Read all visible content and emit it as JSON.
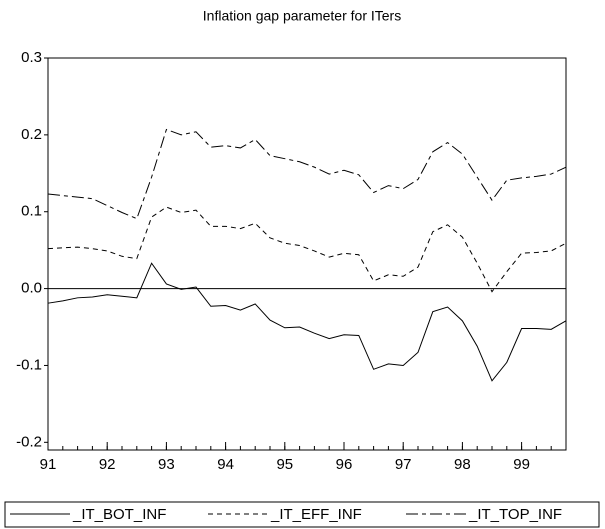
{
  "chart_data": {
    "type": "line",
    "title": "Inflation gap parameter for ITers",
    "x": [
      91,
      91.25,
      91.5,
      91.75,
      92,
      92.25,
      92.5,
      92.75,
      93,
      93.25,
      93.5,
      93.75,
      94,
      94.25,
      94.5,
      94.75,
      95,
      95.25,
      95.5,
      95.75,
      96,
      96.25,
      96.5,
      96.75,
      97,
      97.25,
      97.5,
      97.75,
      98,
      98.25,
      98.5,
      98.75,
      99,
      99.25,
      99.5,
      99.75
    ],
    "series": [
      {
        "name": "_IT_BOT_INF",
        "color": "#000000",
        "dash": "none",
        "values": [
          -0.019,
          -0.016,
          -0.012,
          -0.011,
          -0.008,
          -0.01,
          -0.012,
          0.033,
          0.006,
          -0.001,
          0.002,
          -0.023,
          -0.022,
          -0.028,
          -0.02,
          -0.041,
          -0.051,
          -0.05,
          -0.058,
          -0.065,
          -0.06,
          -0.061,
          -0.105,
          -0.098,
          -0.1,
          -0.083,
          -0.03,
          -0.024,
          -0.042,
          -0.075,
          -0.12,
          -0.096,
          -0.052,
          -0.052,
          -0.053,
          -0.042
        ]
      },
      {
        "name": "_IT_EFF_INF",
        "color": "#000000",
        "dash": "5,4",
        "values": [
          0.052,
          0.053,
          0.054,
          0.052,
          0.049,
          0.042,
          0.039,
          0.093,
          0.106,
          0.099,
          0.102,
          0.081,
          0.081,
          0.078,
          0.085,
          0.066,
          0.059,
          0.056,
          0.049,
          0.041,
          0.046,
          0.044,
          0.01,
          0.018,
          0.016,
          0.028,
          0.074,
          0.083,
          0.067,
          0.033,
          -0.004,
          0.022,
          0.046,
          0.047,
          0.049,
          0.059
        ]
      },
      {
        "name": "_IT_TOP_INF",
        "color": "#000000",
        "dash": "12,4,4,4",
        "values": [
          0.123,
          0.121,
          0.119,
          0.117,
          0.108,
          0.099,
          0.091,
          0.145,
          0.207,
          0.2,
          0.204,
          0.184,
          0.186,
          0.183,
          0.194,
          0.173,
          0.169,
          0.165,
          0.158,
          0.149,
          0.154,
          0.148,
          0.125,
          0.134,
          0.13,
          0.142,
          0.178,
          0.19,
          0.175,
          0.145,
          0.115,
          0.141,
          0.144,
          0.146,
          0.149,
          0.158
        ]
      }
    ],
    "xlim": [
      91,
      99.75
    ],
    "xticks": [
      91,
      92,
      93,
      94,
      95,
      96,
      97,
      98,
      99
    ],
    "ylim": [
      -0.21,
      0.3
    ],
    "yticks": [
      -0.2,
      -0.1,
      {
        "value": 0,
        "label": "0.0"
      },
      0.1,
      0.2,
      0.3
    ]
  }
}
